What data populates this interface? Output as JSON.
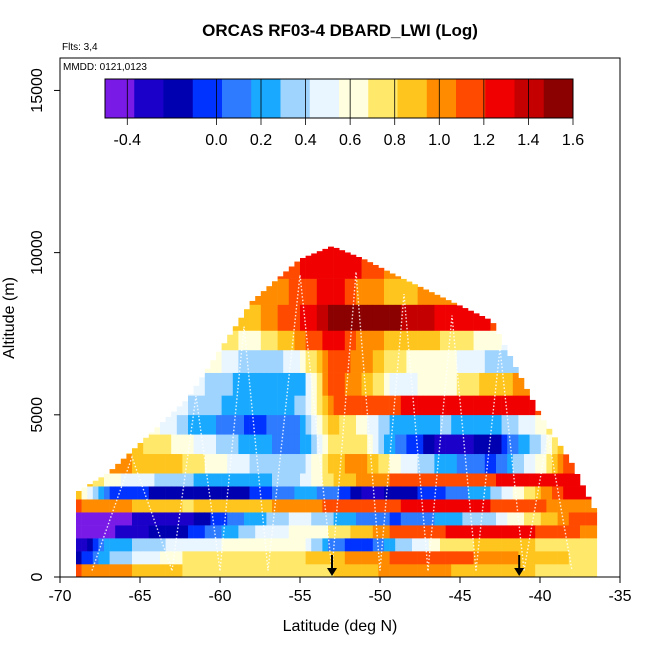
{
  "chart_data": {
    "type": "heatmap",
    "title": "ORCAS RF03-4 DBARD_LWI (Log)",
    "xlabel": "Latitude (deg N)",
    "ylabel": "Altitude (m)",
    "xlim": [
      -70,
      -35
    ],
    "ylim": [
      0,
      16000
    ],
    "x_ticks": [
      -70,
      -65,
      -60,
      -55,
      -50,
      -45,
      -40,
      -35
    ],
    "x_tick_labels": [
      "-70",
      "-65",
      "-60",
      "-55",
      "-50",
      "-45",
      "-40",
      "-35"
    ],
    "y_ticks": [
      0,
      5000,
      10000,
      15000
    ],
    "y_tick_labels": [
      "0",
      "5000",
      "10000",
      "15000"
    ],
    "flights_note": "Flts: 3,4",
    "date_note": "MMDD: 0121,0123",
    "colorbar": {
      "min": -0.5,
      "max": 1.6,
      "ticks": [
        -0.4,
        0.0,
        0.2,
        0.4,
        0.6,
        0.8,
        1.0,
        1.2,
        1.4,
        1.6
      ],
      "tick_labels": [
        "-0.4",
        "0.0",
        "0.2",
        "0.4",
        "0.6",
        "0.8",
        "1.0",
        "1.2",
        "1.4",
        "1.6"
      ],
      "colors": [
        "#7a1ae6",
        "#1a00c8",
        "#0000b0",
        "#0033ff",
        "#2f7bff",
        "#19aaff",
        "#9fd4ff",
        "#e9f6ff",
        "#ffffe0",
        "#ffe86a",
        "#ffc51f",
        "#ff8c00",
        "#ff4a00",
        "#f00000",
        "#c40000",
        "#8b0000"
      ]
    },
    "arrows_latitude": [
      -53,
      -41.3
    ],
    "envelope": {
      "lat": [
        -69,
        -67,
        -62,
        -58,
        -55,
        -53,
        -51,
        -49,
        -46,
        -43,
        -40,
        -38,
        -36.5
      ],
      "top_alt": [
        2600,
        3200,
        5500,
        8500,
        9800,
        10200,
        9800,
        9300,
        8600,
        7900,
        5000,
        3500,
        2000
      ]
    },
    "field_bands": [
      {
        "alt": [
          0,
          400
        ],
        "values": [
          1.1,
          1.0,
          0.8,
          0.7,
          0.75,
          0.8,
          0.9,
          1.0,
          0.95,
          0.9,
          0.8,
          0.75,
          0.7
        ]
      },
      {
        "alt": [
          400,
          800
        ],
        "values": [
          -0.2,
          0.3,
          0.7,
          0.8,
          0.8,
          0.9,
          1.0,
          1.1,
          1.2,
          1.0,
          0.9,
          0.8,
          0.8
        ]
      },
      {
        "alt": [
          800,
          1200
        ],
        "values": [
          -0.4,
          0.2,
          0.5,
          0.6,
          0.6,
          0.1,
          -0.1,
          0.3,
          0.7,
          0.9,
          0.8,
          0.7,
          0.7
        ]
      },
      {
        "alt": [
          1200,
          1600
        ],
        "values": [
          -0.5,
          -0.4,
          -0.1,
          0.4,
          0.6,
          0.7,
          0.9,
          1.1,
          1.2,
          1.3,
          1.2,
          1.1,
          1.0
        ]
      },
      {
        "alt": [
          1600,
          2000
        ],
        "values": [
          -0.4,
          -0.4,
          -0.3,
          0.2,
          0.5,
          0.3,
          0.1,
          0.0,
          0.2,
          0.4,
          0.8,
          1.1,
          1.2
        ]
      },
      {
        "alt": [
          2000,
          2400
        ],
        "values": [
          1.1,
          1.0,
          0.8,
          0.9,
          1.0,
          1.1,
          1.2,
          1.2,
          1.3,
          1.2,
          1.1,
          1.0,
          1.0
        ]
      },
      {
        "alt": [
          2400,
          2800
        ],
        "values": [
          0.9,
          0.0,
          -0.2,
          -0.1,
          0.2,
          0.1,
          -0.3,
          -0.2,
          0.0,
          0.3,
          0.9,
          1.3,
          1.3
        ]
      },
      {
        "alt": [
          2800,
          3200
        ],
        "values": [
          1.0,
          0.6,
          0.3,
          0.2,
          0.4,
          0.8,
          1.0,
          1.1,
          1.2,
          1.2,
          1.3,
          1.3,
          1.3
        ]
      },
      {
        "alt": [
          3200,
          3800
        ],
        "values": [
          1.0,
          1.0,
          0.8,
          0.4,
          0.3,
          0.9,
          1.0,
          0.6,
          0.2,
          0.0,
          0.6,
          1.2,
          1.3
        ]
      },
      {
        "alt": [
          3800,
          4400
        ],
        "values": [
          1.0,
          1.0,
          0.6,
          0.2,
          0.1,
          0.8,
          0.7,
          0.1,
          -0.3,
          -0.2,
          0.4,
          1.1,
          1.3
        ]
      },
      {
        "alt": [
          4400,
          5000
        ],
        "values": [
          1.0,
          1.0,
          0.3,
          0.0,
          0.1,
          0.9,
          0.6,
          0.2,
          0.3,
          0.2,
          0.6,
          1.1,
          1.3
        ]
      },
      {
        "alt": [
          5000,
          5600
        ],
        "values": [
          1.0,
          1.0,
          0.4,
          0.2,
          0.3,
          1.1,
          1.2,
          1.2,
          1.3,
          1.3,
          1.2,
          1.2,
          1.3
        ]
      },
      {
        "alt": [
          5600,
          6300
        ],
        "values": [
          1.0,
          1.0,
          0.5,
          0.2,
          0.2,
          1.2,
          0.9,
          0.5,
          0.6,
          0.9,
          1.0,
          1.2,
          1.3
        ]
      },
      {
        "alt": [
          6300,
          7000
        ],
        "values": [
          1.0,
          1.0,
          0.8,
          0.3,
          0.5,
          1.2,
          1.0,
          0.7,
          0.6,
          0.4,
          0.3,
          1.0,
          1.3
        ]
      },
      {
        "alt": [
          7000,
          7600
        ],
        "values": [
          1.0,
          1.0,
          1.0,
          0.6,
          1.0,
          1.3,
          1.0,
          0.9,
          0.8,
          0.6,
          0.4,
          1.0,
          1.3
        ]
      },
      {
        "alt": [
          7600,
          8400
        ],
        "values": [
          1.0,
          1.0,
          1.0,
          0.9,
          1.2,
          1.5,
          1.5,
          1.5,
          1.3,
          1.2,
          1.2,
          1.2,
          1.3
        ]
      },
      {
        "alt": [
          8400,
          9200
        ],
        "values": [
          1.0,
          1.0,
          1.0,
          1.0,
          1.1,
          1.3,
          1.0,
          0.9,
          1.0,
          1.1,
          1.2,
          1.2,
          1.3
        ]
      },
      {
        "alt": [
          9200,
          10300
        ],
        "values": [
          1.0,
          1.0,
          1.0,
          1.0,
          1.2,
          1.3,
          1.2,
          1.0,
          1.0,
          1.1,
          1.2,
          1.2,
          1.3
        ]
      }
    ]
  }
}
